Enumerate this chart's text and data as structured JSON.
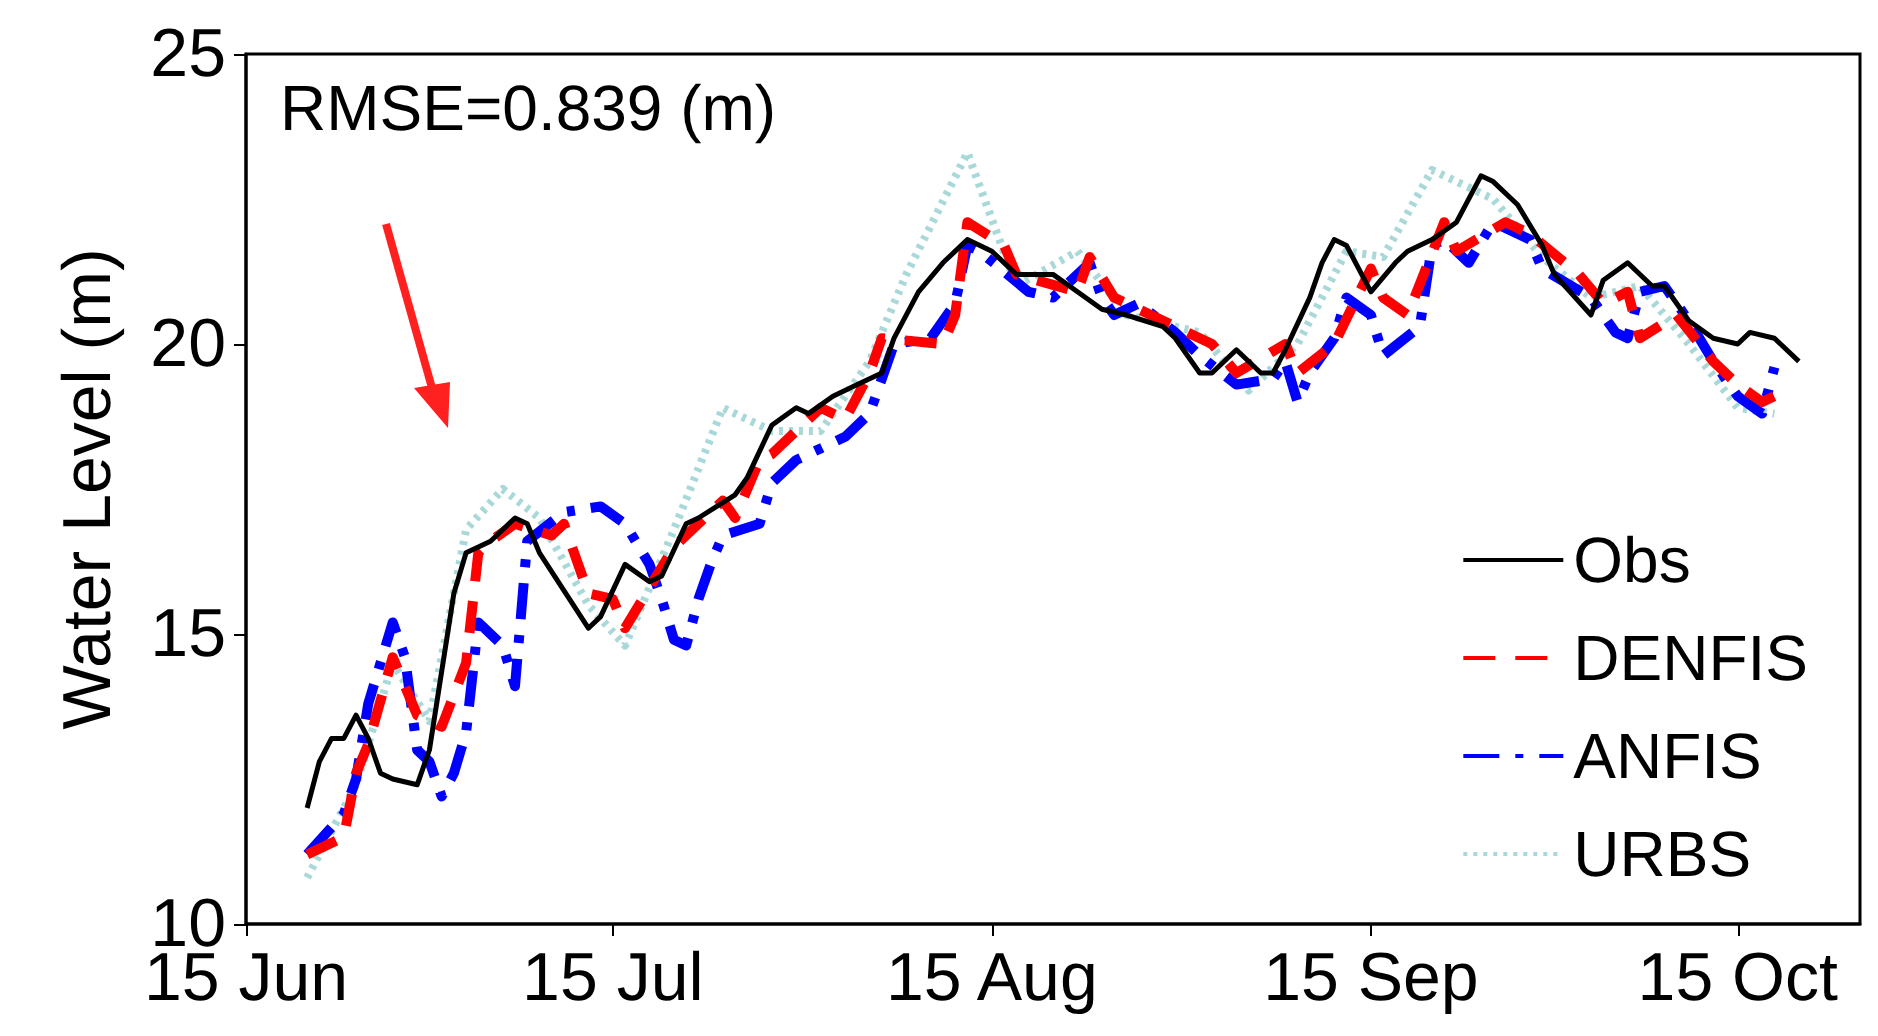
{
  "chart_data": {
    "type": "line",
    "ylabel": "Water Level (m)",
    "annotations": [
      "RMSE=0.839 (m)"
    ],
    "xlim": [
      "--06-15",
      "--10-25"
    ],
    "xticks": [
      {
        "value": "--06-15",
        "label": "15 Jun"
      },
      {
        "value": "--07-15",
        "label": "15 Jul"
      },
      {
        "value": "--08-15",
        "label": "15 Aug"
      },
      {
        "value": "--09-15",
        "label": "15 Sep"
      },
      {
        "value": "--10-15",
        "label": "15 Oct"
      }
    ],
    "ylim": [
      10,
      25
    ],
    "yticks": [
      10,
      15,
      20,
      25
    ],
    "grid": false,
    "legend": "bottom right",
    "marker": "none",
    "series": [
      {
        "name": "Obs",
        "color": "#000000",
        "line_style": "solid",
        "x": [
          "--06-20",
          "--06-21",
          "--06-22",
          "--06-23",
          "--06-24",
          "--06-25",
          "--06-26",
          "--06-27",
          "--06-29",
          "--06-30",
          "--07-02",
          "--07-03",
          "--07-05",
          "--07-07",
          "--07-08",
          "--07-09",
          "--07-13",
          "--07-14",
          "--07-16",
          "--07-18",
          "--07-19",
          "--07-21",
          "--07-22",
          "--07-25",
          "--07-26",
          "--07-28",
          "--07-30",
          "--07-31",
          "--08-02",
          "--08-04",
          "--08-06",
          "--08-07",
          "--08-09",
          "--08-11",
          "--08-13",
          "--08-15",
          "--08-17",
          "--08-20",
          "--08-22",
          "--08-24",
          "--08-26",
          "--08-29",
          "--08-30",
          "--09-01",
          "--09-02",
          "--09-04",
          "--09-06",
          "--09-07",
          "--09-08",
          "--09-10",
          "--09-11",
          "--09-12",
          "--09-13",
          "--09-15",
          "--09-17",
          "--09-18",
          "--09-20",
          "--09-22",
          "--09-24",
          "--09-25",
          "--09-27",
          "--09-29",
          "--09-30",
          "--10-03",
          "--10-04",
          "--10-06",
          "--10-08",
          "--10-09",
          "--10-11",
          "--10-13",
          "--10-15",
          "--10-16",
          "--10-18",
          "--10-20"
        ],
        "values": [
          12.0,
          12.8,
          13.2,
          13.2,
          13.6,
          13.2,
          12.6,
          12.5,
          12.4,
          13.0,
          15.7,
          16.4,
          16.6,
          17.0,
          16.9,
          16.4,
          15.1,
          15.3,
          16.2,
          15.9,
          16.0,
          16.9,
          17.0,
          17.4,
          17.7,
          18.6,
          18.9,
          18.8,
          19.1,
          19.3,
          19.5,
          20.1,
          20.9,
          21.4,
          21.8,
          21.6,
          21.2,
          21.2,
          20.9,
          20.6,
          20.5,
          20.3,
          20.1,
          19.5,
          19.5,
          19.9,
          19.5,
          19.5,
          19.9,
          20.8,
          21.4,
          21.8,
          21.7,
          20.9,
          21.4,
          21.6,
          21.8,
          22.1,
          22.9,
          22.8,
          22.4,
          21.7,
          21.2,
          20.5,
          21.1,
          21.4,
          21.0,
          21.0,
          20.4,
          20.1,
          20.0,
          20.2,
          20.1,
          19.7
        ]
      },
      {
        "name": "DENFIS",
        "color": "#ff0000",
        "line_style": "dashed",
        "x": [
          "--06-20",
          "--06-23",
          "--06-24",
          "--06-25",
          "--06-27",
          "--06-29",
          "--07-01",
          "--07-03",
          "--07-04",
          "--07-05",
          "--07-07",
          "--07-10",
          "--07-11",
          "--07-13",
          "--07-15",
          "--07-16",
          "--07-20",
          "--07-24",
          "--07-25",
          "--07-27",
          "--07-28",
          "--08-01",
          "--08-03",
          "--08-05",
          "--08-06",
          "--08-11",
          "--08-12",
          "--08-13",
          "--08-16",
          "--08-17",
          "--08-22",
          "--08-23",
          "--08-25",
          "--08-28",
          "--09-02",
          "--09-04",
          "--09-08",
          "--09-09",
          "--09-12",
          "--09-15",
          "--09-16",
          "--09-18",
          "--09-21",
          "--09-22",
          "--09-26",
          "--09-28",
          "--10-02",
          "--10-04",
          "--10-06",
          "--10-07",
          "--10-10",
          "--10-13",
          "--10-15",
          "--10-17",
          "--10-18"
        ],
        "values": [
          11.2,
          11.5,
          12.6,
          13.1,
          14.6,
          13.6,
          13.4,
          14.5,
          16.4,
          16.6,
          16.9,
          16.7,
          16.9,
          15.7,
          15.6,
          15.1,
          16.5,
          17.3,
          17.0,
          18.0,
          18.1,
          18.9,
          18.7,
          19.5,
          20.1,
          20.0,
          20.5,
          22.1,
          21.7,
          21.2,
          20.9,
          21.5,
          20.8,
          20.5,
          20.0,
          19.5,
          20.0,
          19.5,
          20.0,
          21.3,
          20.8,
          20.5,
          22.1,
          21.6,
          22.1,
          21.9,
          21.2,
          20.7,
          20.9,
          20.1,
          20.5,
          19.7,
          19.3,
          19.0,
          19.1
        ]
      },
      {
        "name": "ANFIS",
        "color": "#0000ff",
        "line_style": "dashdot",
        "x": [
          "--06-20",
          "--06-23",
          "--06-24",
          "--06-25",
          "--06-27",
          "--06-28",
          "--06-29",
          "--06-30",
          "--07-01",
          "--07-02",
          "--07-03",
          "--07-04",
          "--07-06",
          "--07-07",
          "--07-08",
          "--07-11",
          "--07-14",
          "--07-16",
          "--07-18",
          "--07-19",
          "--07-20",
          "--07-21",
          "--07-22",
          "--07-23",
          "--07-24",
          "--07-27",
          "--07-28",
          "--07-30",
          "--08-03",
          "--08-05",
          "--08-07",
          "--08-10",
          "--08-12",
          "--08-13",
          "--08-14",
          "--08-18",
          "--08-20",
          "--08-23",
          "--08-24",
          "--08-25",
          "--08-27",
          "--08-30",
          "--09-01",
          "--09-04",
          "--09-07",
          "--09-08",
          "--09-09",
          "--09-10",
          "--09-12",
          "--09-13",
          "--09-15",
          "--09-16",
          "--09-19",
          "--09-20",
          "--09-21",
          "--09-23",
          "--09-25",
          "--09-28",
          "--09-29",
          "--10-03",
          "--10-05",
          "--10-06",
          "--10-07",
          "--10-09",
          "--10-11",
          "--10-13",
          "--10-15",
          "--10-17",
          "--10-18"
        ],
        "values": [
          11.2,
          11.9,
          12.5,
          13.8,
          15.2,
          14.6,
          13.0,
          12.8,
          12.2,
          12.6,
          13.3,
          15.2,
          14.8,
          14.1,
          16.6,
          17.1,
          17.2,
          16.9,
          16.2,
          15.6,
          14.9,
          14.8,
          15.6,
          16.2,
          16.7,
          16.9,
          17.6,
          18.0,
          18.4,
          18.8,
          20.0,
          20.1,
          20.7,
          21.7,
          21.6,
          20.9,
          20.8,
          21.4,
          20.8,
          20.5,
          20.7,
          20.2,
          19.8,
          19.3,
          19.4,
          19.7,
          19.0,
          19.5,
          20.1,
          20.8,
          20.5,
          19.8,
          20.3,
          21.7,
          21.8,
          21.4,
          22.1,
          21.8,
          21.3,
          20.8,
          20.2,
          20.1,
          20.9,
          21.0,
          20.4,
          19.7,
          19.1,
          18.8,
          19.6
        ]
      },
      {
        "name": "URBS",
        "color": "#a8d8d8",
        "line_style": "dotted",
        "x": [
          "--06-20",
          "--06-24",
          "--06-27",
          "--06-30",
          "--07-03",
          "--07-06",
          "--07-09",
          "--07-13",
          "--07-16",
          "--07-20",
          "--07-24",
          "--07-28",
          "--08-01",
          "--08-05",
          "--08-08",
          "--08-13",
          "--08-17",
          "--08-22",
          "--08-26",
          "--09-01",
          "--09-05",
          "--09-09",
          "--09-13",
          "--09-16",
          "--09-20",
          "--09-25",
          "--09-29",
          "--10-03",
          "--10-07",
          "--10-11",
          "--10-15",
          "--10-18"
        ],
        "values": [
          10.8,
          12.4,
          14.5,
          13.5,
          16.8,
          17.5,
          17.0,
          15.5,
          14.8,
          16.8,
          18.9,
          18.5,
          18.5,
          19.7,
          21.2,
          23.3,
          21.0,
          21.6,
          20.5,
          20.2,
          19.2,
          20.0,
          21.6,
          21.5,
          23.0,
          22.5,
          21.5,
          20.8,
          21.0,
          20.0,
          18.9,
          18.8
        ]
      }
    ]
  }
}
